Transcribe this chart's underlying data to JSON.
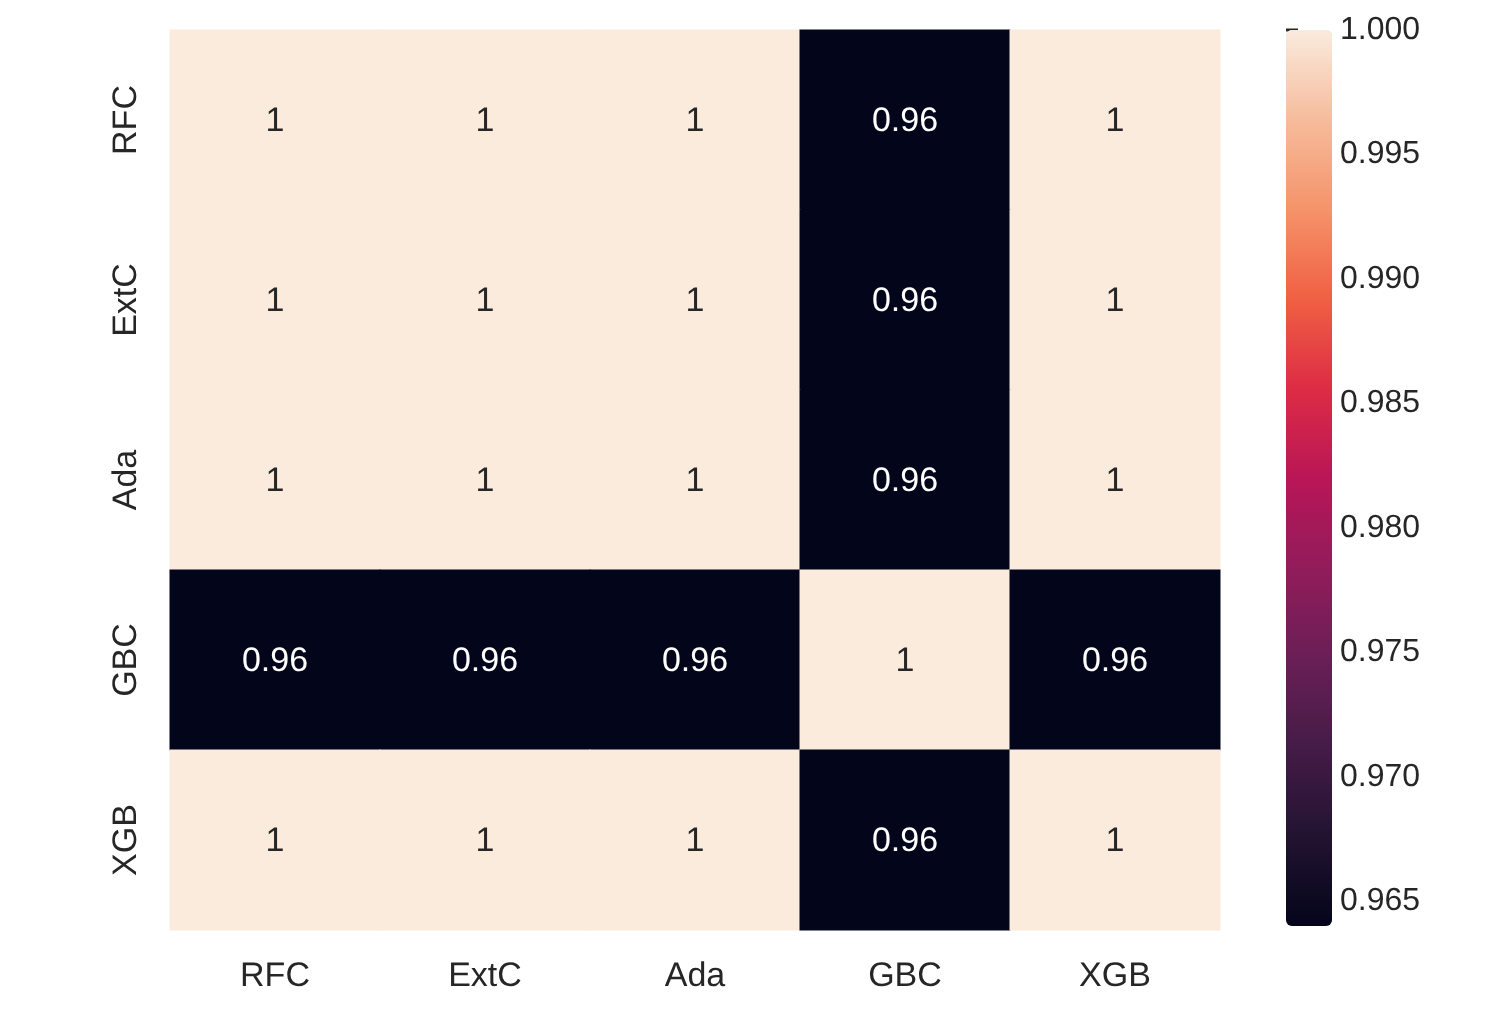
{
  "chart_data": {
    "type": "heatmap",
    "categories": [
      "RFC",
      "ExtC",
      "Ada",
      "GBC",
      "XGB"
    ],
    "y_categories": [
      "RFC",
      "ExtC",
      "Ada",
      "GBC",
      "XGB"
    ],
    "cells": [
      [
        1,
        1,
        1,
        0.964,
        1
      ],
      [
        1,
        1,
        1,
        0.964,
        1
      ],
      [
        1,
        1,
        1,
        0.964,
        1
      ],
      [
        0.964,
        0.964,
        0.964,
        1,
        0.964
      ],
      [
        1,
        1,
        1,
        0.964,
        1
      ]
    ],
    "cell_labels": [
      [
        "1",
        "1",
        "1",
        "0.96",
        "1"
      ],
      [
        "1",
        "1",
        "1",
        "0.96",
        "1"
      ],
      [
        "1",
        "1",
        "1",
        "0.96",
        "1"
      ],
      [
        "0.96",
        "0.96",
        "0.96",
        "1",
        "0.96"
      ],
      [
        "1",
        "1",
        "1",
        "0.96",
        "1"
      ]
    ],
    "clim": [
      0.964,
      1
    ],
    "cticks": [
      {
        "value": 0.965,
        "label": "0.965"
      },
      {
        "value": 0.97,
        "label": "0.970"
      },
      {
        "value": 0.975,
        "label": "0.975"
      },
      {
        "value": 0.98,
        "label": "0.980"
      },
      {
        "value": 0.985,
        "label": "0.985"
      },
      {
        "value": 0.99,
        "label": "0.990"
      },
      {
        "value": 0.995,
        "label": "0.995"
      },
      {
        "value": 1,
        "label": "1.000"
      }
    ]
  }
}
